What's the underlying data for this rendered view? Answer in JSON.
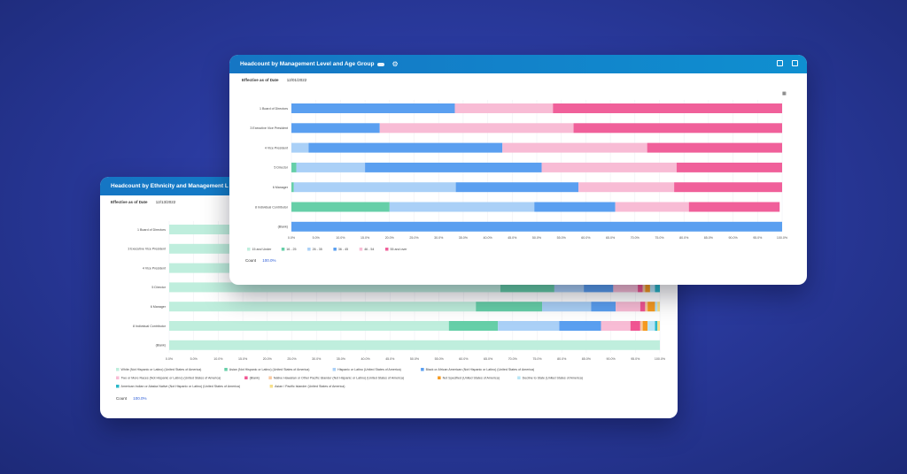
{
  "colors": {
    "bg": "#2a3a9e",
    "header": "#1280c8"
  },
  "back_card": {
    "title": "Headcount by Ethnicity and Management L",
    "effective_label": "Effective as of Date",
    "effective_date": "12/13/2022",
    "count_label": "Count",
    "count_value": "100.0%"
  },
  "front_card": {
    "title": "Headcount by Management Level and Age Group",
    "effective_label": "Effective as of Date",
    "effective_date": "12/01/2022",
    "count_label": "Count",
    "count_value": "100.0%"
  },
  "chart_data": [
    {
      "type": "bar",
      "stacked": true,
      "orientation": "horizontal",
      "title": "Headcount by Ethnicity and Management Level",
      "categories": [
        "1 Board of Directors",
        "3 Executive Vice President",
        "4 Vice President",
        "5 Director",
        "6 Manager",
        "8 Individual Contributor",
        "(Blank)"
      ],
      "xlim": [
        0,
        100
      ],
      "xticks": [
        "0.0%",
        "5.0%",
        "10.0%",
        "15.0%",
        "20.0%",
        "25.0%",
        "30.0%",
        "35.0%",
        "40.0%",
        "45.0%",
        "50.0%",
        "55.0%",
        "60.0%",
        "65.0%",
        "70.0%",
        "75.0%",
        "80.0%",
        "85.0%",
        "90.0%",
        "95.0%",
        "100.0%"
      ],
      "series": [
        {
          "name": "White (Not Hispanic or Latino) (United States of America)",
          "color": "#bfeedd",
          "values": [
            100,
            100,
            100,
            67.5,
            62.5,
            57,
            100
          ]
        },
        {
          "name": "Asian (Not Hispanic or Latino) (United States of America)",
          "color": "#66cfa8",
          "values": [
            0,
            0,
            0,
            11,
            13.5,
            10,
            0
          ]
        },
        {
          "name": "Hispanic or Latino (United States of America)",
          "color": "#aad0f7",
          "values": [
            0,
            0,
            0,
            6,
            10,
            12.5,
            0
          ]
        },
        {
          "name": "Black or African American (Not Hispanic or Latino) (United States of America)",
          "color": "#5a9ff0",
          "values": [
            0,
            0,
            0,
            6,
            5,
            8.5,
            0
          ]
        },
        {
          "name": "Two or More Races (Not Hispanic or Latino) (United States of America)",
          "color": "#f8bcd5",
          "values": [
            0,
            0,
            0,
            5,
            5,
            6,
            0
          ]
        },
        {
          "name": "(Blank)",
          "color": "#f05592",
          "values": [
            0,
            0,
            0,
            1,
            1,
            2,
            0
          ]
        },
        {
          "name": "Native Hawaiian or Other Pacific Islander (Not Hispanic or Latino) (United States of America)",
          "color": "#f9c9a0",
          "values": [
            0,
            0,
            0,
            0.5,
            0.5,
            0.5,
            0
          ]
        },
        {
          "name": "Not Specified (United States of America)",
          "color": "#f59a20",
          "values": [
            0,
            0,
            0,
            1,
            1.5,
            1,
            0
          ]
        },
        {
          "name": "Decline to State (United States of America)",
          "color": "#b8e6f6",
          "values": [
            0,
            0,
            0,
            1,
            0.5,
            1.5,
            0
          ]
        },
        {
          "name": "American Indian or Alaska Native (Not Hispanic or Latino) (United States of America)",
          "color": "#2bb8c8",
          "values": [
            0,
            0,
            0,
            1,
            0,
            0.5,
            0
          ]
        },
        {
          "name": "Asian / Pacific Islander (United States of America)",
          "color": "#f7e08a",
          "values": [
            0,
            0,
            0,
            0,
            0.5,
            0.5,
            0
          ]
        }
      ]
    },
    {
      "type": "bar",
      "stacked": true,
      "orientation": "horizontal",
      "title": "Headcount by Management Level and Age Group",
      "categories": [
        "1 Board of Directors",
        "3 Executive Vice President",
        "4 Vice President",
        "5 Director",
        "6 Manager",
        "8 Individual Contributor",
        "(Blank)"
      ],
      "xlim": [
        0,
        100
      ],
      "xticks": [
        "0.0%",
        "5.0%",
        "10.0%",
        "15.0%",
        "20.0%",
        "25.0%",
        "30.0%",
        "35.0%",
        "40.0%",
        "45.0%",
        "50.0%",
        "55.0%",
        "60.0%",
        "65.0%",
        "70.0%",
        "75.0%",
        "80.0%",
        "85.0%",
        "90.0%",
        "95.0%",
        "100.0%"
      ],
      "series": [
        {
          "name": "15 and Under",
          "color": "#bfeedd",
          "values": [
            0,
            0,
            0,
            0,
            0,
            0,
            0
          ]
        },
        {
          "name": "16 - 25",
          "color": "#66cfa8",
          "values": [
            0,
            0,
            0,
            1,
            0.5,
            20,
            0
          ]
        },
        {
          "name": "26 - 35",
          "color": "#aad0f7",
          "values": [
            0,
            0,
            3.5,
            14,
            33,
            29.5,
            0
          ]
        },
        {
          "name": "36 - 45",
          "color": "#5a9ff0",
          "values": [
            33.3,
            18,
            39.5,
            36,
            25,
            16.5,
            100
          ]
        },
        {
          "name": "46 - 54",
          "color": "#f8bcd5",
          "values": [
            20,
            39.5,
            29.5,
            27.5,
            19.5,
            15,
            0
          ]
        },
        {
          "name": "55 and over",
          "color": "#f0609a",
          "values": [
            46.7,
            42.5,
            27.5,
            21.5,
            22,
            18.5,
            0
          ]
        }
      ]
    }
  ]
}
